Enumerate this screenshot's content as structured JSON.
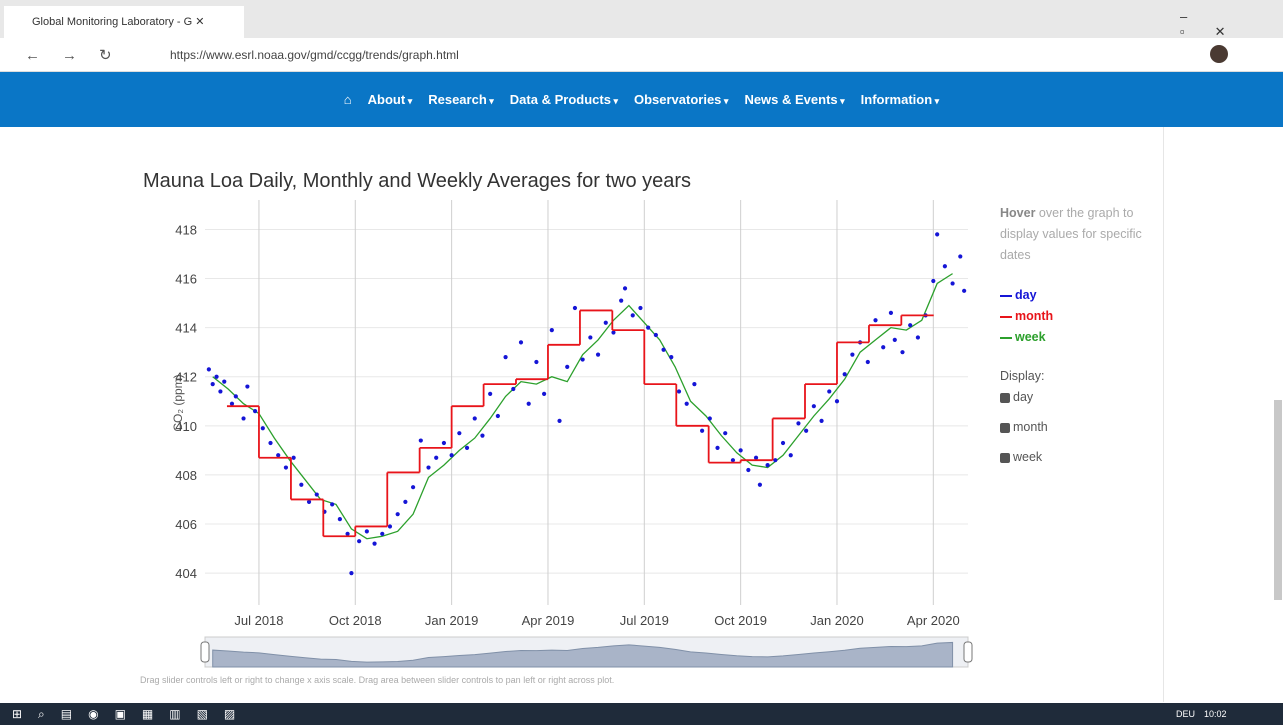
{
  "browser": {
    "tab_title": "Global Monitoring Laboratory - G",
    "url": "https://www.esrl.noaa.gov/gmd/ccgg/trends/graph.html"
  },
  "nav": [
    "About",
    "Research",
    "Data & Products",
    "Observatories",
    "News & Events",
    "Information"
  ],
  "hint": {
    "bold": "Hover",
    "text": "over the graph to display values for specific dates"
  },
  "display_label": "Display:",
  "slider_note": "Drag slider controls left or right to change x axis scale. Drag area between slider controls to pan left or right across plot.",
  "taskbar": {
    "language": "DEU",
    "time": "10:02"
  },
  "chart_data": {
    "type": "line",
    "title": "Mauna Loa Daily, Monthly and Weekly Averages for two years",
    "y_label": "CO₂ (ppm)",
    "xlim": [
      2018.36,
      2020.34
    ],
    "ylim": [
      402.7,
      419.2
    ],
    "xticks": [
      {
        "value": 2018.5,
        "label": "Jul 2018"
      },
      {
        "value": 2018.75,
        "label": "Oct 2018"
      },
      {
        "value": 2019.0,
        "label": "Jan 2019"
      },
      {
        "value": 2019.25,
        "label": "Apr 2019"
      },
      {
        "value": 2019.5,
        "label": "Jul 2019"
      },
      {
        "value": 2019.75,
        "label": "Oct 2019"
      },
      {
        "value": 2020.0,
        "label": "Jan 2020"
      },
      {
        "value": 2020.25,
        "label": "Apr 2020"
      }
    ],
    "yticks": [
      404,
      406,
      408,
      410,
      412,
      414,
      416,
      418
    ],
    "grid": true,
    "series": [
      {
        "name": "day",
        "color": "#1515d6",
        "mode": "scatter",
        "x": [
          2018.37,
          2018.38,
          2018.39,
          2018.4,
          2018.41,
          2018.43,
          2018.44,
          2018.46,
          2018.47,
          2018.49,
          2018.51,
          2018.53,
          2018.55,
          2018.57,
          2018.59,
          2018.61,
          2018.63,
          2018.65,
          2018.67,
          2018.69,
          2018.71,
          2018.73,
          2018.74,
          2018.76,
          2018.78,
          2018.8,
          2018.82,
          2018.84,
          2018.86,
          2018.88,
          2018.9,
          2018.92,
          2018.94,
          2018.96,
          2018.98,
          2019.0,
          2019.02,
          2019.04,
          2019.06,
          2019.08,
          2019.1,
          2019.12,
          2019.14,
          2019.16,
          2019.18,
          2019.2,
          2019.22,
          2019.24,
          2019.26,
          2019.28,
          2019.3,
          2019.32,
          2019.34,
          2019.36,
          2019.38,
          2019.4,
          2019.42,
          2019.44,
          2019.45,
          2019.47,
          2019.49,
          2019.51,
          2019.53,
          2019.55,
          2019.57,
          2019.59,
          2019.61,
          2019.63,
          2019.65,
          2019.67,
          2019.69,
          2019.71,
          2019.73,
          2019.75,
          2019.77,
          2019.79,
          2019.8,
          2019.82,
          2019.84,
          2019.86,
          2019.88,
          2019.9,
          2019.92,
          2019.94,
          2019.96,
          2019.98,
          2020.0,
          2020.02,
          2020.04,
          2020.06,
          2020.08,
          2020.1,
          2020.12,
          2020.14,
          2020.15,
          2020.17,
          2020.19,
          2020.21,
          2020.23,
          2020.25,
          2020.26,
          2020.28,
          2020.3,
          2020.32,
          2020.33
        ],
        "values": [
          412.3,
          411.7,
          412.0,
          411.4,
          411.8,
          410.9,
          411.2,
          410.3,
          411.6,
          410.6,
          409.9,
          409.3,
          408.8,
          408.3,
          408.7,
          407.6,
          406.9,
          407.2,
          406.5,
          406.8,
          406.2,
          405.6,
          404.0,
          405.3,
          405.7,
          405.2,
          405.6,
          405.9,
          406.4,
          406.9,
          407.5,
          409.4,
          408.3,
          408.7,
          409.3,
          408.8,
          409.7,
          409.1,
          410.3,
          409.6,
          411.3,
          410.4,
          412.8,
          411.5,
          413.4,
          410.9,
          412.6,
          411.3,
          413.9,
          410.2,
          412.4,
          414.8,
          412.7,
          413.6,
          412.9,
          414.2,
          413.8,
          415.1,
          415.6,
          414.5,
          414.8,
          414.0,
          413.7,
          413.1,
          412.8,
          411.4,
          410.9,
          411.7,
          409.8,
          410.3,
          409.1,
          409.7,
          408.6,
          409.0,
          408.2,
          408.7,
          407.6,
          408.4,
          408.6,
          409.3,
          408.8,
          410.1,
          409.8,
          410.8,
          410.2,
          411.4,
          411.0,
          412.1,
          412.9,
          413.4,
          412.6,
          414.3,
          413.2,
          414.6,
          413.5,
          413.0,
          414.1,
          413.6,
          414.5,
          415.9,
          417.8,
          416.5,
          415.8,
          416.9,
          415.5
        ]
      },
      {
        "name": "month",
        "color": "#e8141a",
        "mode": "step",
        "x": [
          2018.417,
          2018.5,
          2018.583,
          2018.667,
          2018.75,
          2018.833,
          2018.917,
          2019.0,
          2019.083,
          2019.167,
          2019.25,
          2019.333,
          2019.417,
          2019.5,
          2019.583,
          2019.667,
          2019.75,
          2019.833,
          2019.917,
          2020.0,
          2020.083,
          2020.167
        ],
        "values": [
          410.8,
          408.7,
          407.0,
          405.5,
          405.9,
          408.1,
          409.1,
          410.8,
          411.7,
          411.9,
          413.3,
          414.7,
          413.9,
          411.7,
          410.0,
          408.5,
          408.6,
          410.3,
          411.7,
          413.4,
          414.1,
          414.5
        ]
      },
      {
        "name": "week",
        "color": "#2ca02c",
        "mode": "line",
        "x": [
          2018.38,
          2018.42,
          2018.46,
          2018.5,
          2018.54,
          2018.58,
          2018.62,
          2018.66,
          2018.7,
          2018.74,
          2018.78,
          2018.82,
          2018.86,
          2018.9,
          2018.94,
          2018.98,
          2019.02,
          2019.06,
          2019.1,
          2019.14,
          2019.18,
          2019.22,
          2019.26,
          2019.3,
          2019.34,
          2019.38,
          2019.42,
          2019.46,
          2019.5,
          2019.54,
          2019.58,
          2019.62,
          2019.66,
          2019.7,
          2019.74,
          2019.78,
          2019.82,
          2019.86,
          2019.9,
          2019.94,
          2019.98,
          2020.02,
          2020.06,
          2020.1,
          2020.14,
          2020.18,
          2020.22,
          2020.26,
          2020.3
        ],
        "values": [
          412.0,
          411.5,
          410.9,
          410.5,
          409.5,
          408.6,
          407.8,
          407.0,
          406.8,
          405.8,
          405.4,
          405.5,
          405.7,
          406.4,
          407.9,
          408.4,
          409.0,
          409.5,
          410.3,
          411.2,
          411.8,
          411.7,
          412.0,
          411.8,
          412.9,
          413.5,
          414.3,
          414.9,
          414.2,
          413.5,
          412.4,
          411.0,
          410.4,
          409.6,
          408.9,
          408.4,
          408.3,
          408.8,
          409.6,
          410.4,
          411.1,
          411.9,
          413.0,
          413.5,
          414.0,
          413.9,
          414.3,
          415.8,
          416.2
        ]
      }
    ]
  }
}
